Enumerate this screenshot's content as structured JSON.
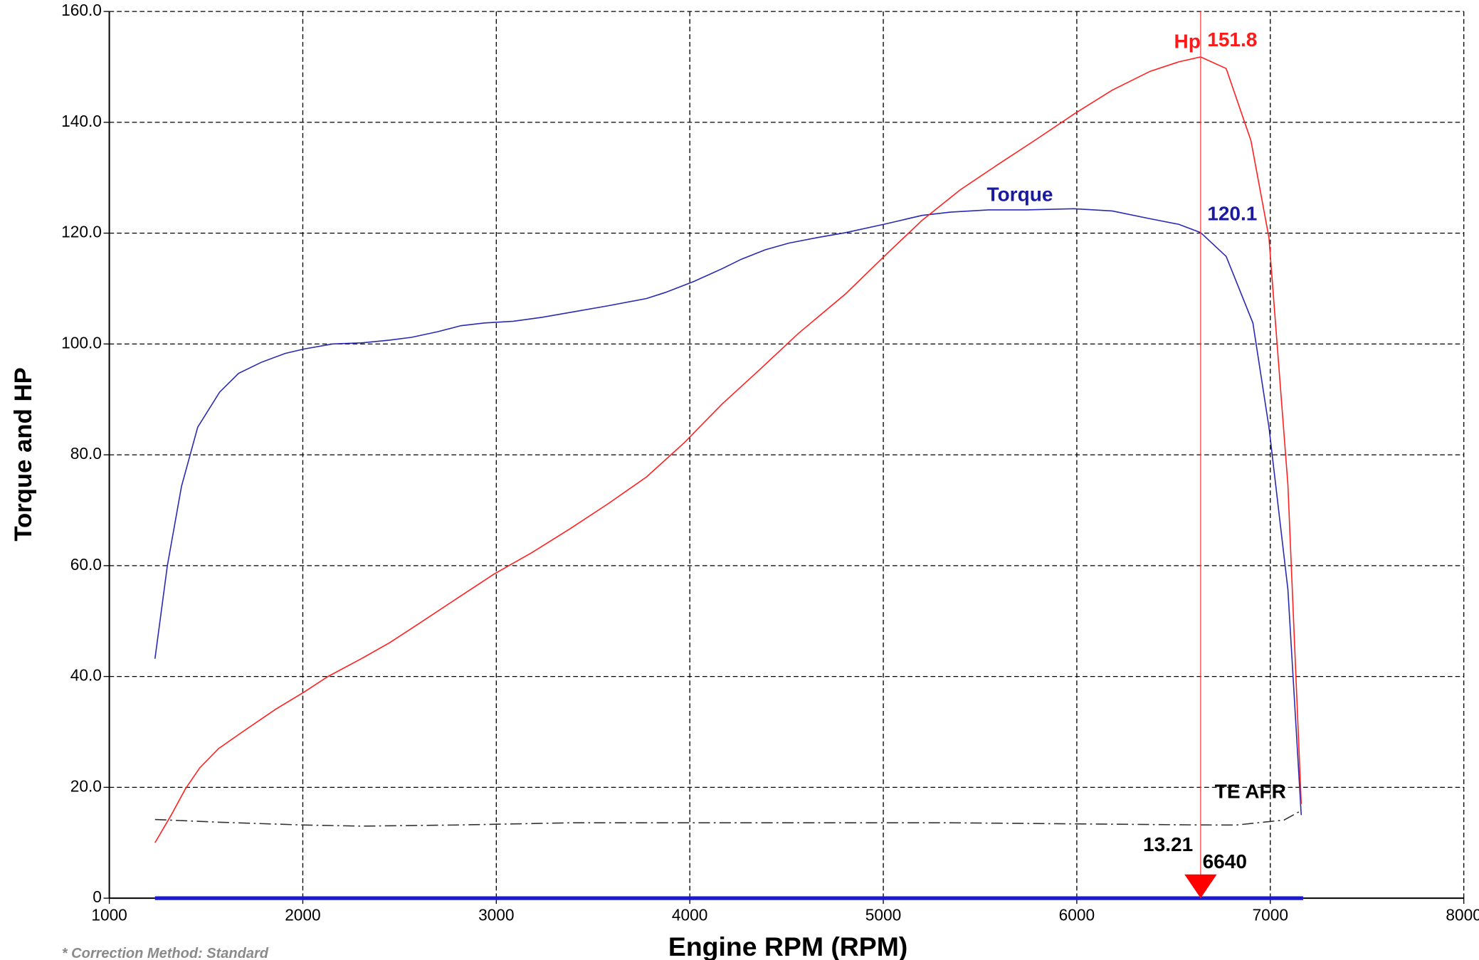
{
  "chart_data": {
    "type": "line",
    "x_label": "Engine RPM (RPM)",
    "y_label": "Torque and HP",
    "footnote": "* Correction Method: Standard",
    "xlim": [
      1000,
      8000
    ],
    "xticks": [
      1000,
      2000,
      3000,
      4000,
      5000,
      6000,
      7000,
      8000
    ],
    "ylim": [
      0,
      160
    ],
    "yticks": [
      0,
      {
        "value": 20,
        "label": "20.0"
      },
      {
        "value": 40,
        "label": "40.0"
      },
      {
        "value": 60,
        "label": "60.0"
      },
      {
        "value": 80,
        "label": "80.0"
      },
      {
        "value": 100,
        "label": "100.0"
      },
      {
        "value": 120,
        "label": "120.0"
      },
      {
        "value": 140,
        "label": "140.0"
      },
      {
        "value": 160,
        "label": "160.0"
      }
    ],
    "grid": true,
    "series": [
      {
        "name": "Torque",
        "color": "#2a2ab0",
        "dash": "solid",
        "x": [
          1236,
          1300,
          1373,
          1457,
          1570,
          1668,
          1786,
          1909,
          2007,
          2155,
          2302,
          2449,
          2562,
          2695,
          2817,
          2940,
          3088,
          3235,
          3383,
          3579,
          3776,
          3874,
          4022,
          4168,
          4267,
          4390,
          4512,
          4660,
          4807,
          5004,
          5200,
          5347,
          5544,
          5740,
          5986,
          6183,
          6379,
          6526,
          6640,
          6772,
          6910,
          6993,
          7091,
          7160
        ],
        "values": [
          43.2,
          60,
          74.3,
          85,
          91.3,
          94.7,
          96.7,
          98.3,
          99.1,
          100,
          100.2,
          100.7,
          101.2,
          102.2,
          103.3,
          103.8,
          104.1,
          104.8,
          105.7,
          106.9,
          108.2,
          109.3,
          111.3,
          113.6,
          115.3,
          117,
          118.2,
          119.2,
          120.1,
          121.6,
          123.2,
          123.8,
          124.2,
          124.2,
          124.4,
          124,
          122.6,
          121.6,
          120.1,
          115.8,
          103.8,
          85,
          55.7,
          15
        ]
      },
      {
        "name": "Hp",
        "color": "#ff2020",
        "dash": "solid",
        "x": [
          1236,
          1320,
          1393,
          1467,
          1565,
          1688,
          1860,
          2007,
          2130,
          2302,
          2449,
          2572,
          2793,
          2989,
          3186,
          3383,
          3579,
          3776,
          3972,
          4168,
          4365,
          4561,
          4807,
          5004,
          5200,
          5397,
          5593,
          5790,
          5986,
          6183,
          6379,
          6526,
          6640,
          6772,
          6900,
          6993,
          7091,
          7160
        ],
        "values": [
          10,
          15,
          19.7,
          23.5,
          27,
          30,
          34.1,
          37.2,
          40,
          43.2,
          46.1,
          48.9,
          54,
          58.5,
          62.4,
          66.7,
          71.2,
          76,
          82.2,
          89.2,
          95.5,
          101.9,
          109.1,
          115.8,
          122.3,
          127.8,
          132.4,
          136.9,
          141.5,
          145.8,
          149.2,
          150.9,
          151.8,
          149.7,
          136.7,
          119.2,
          74.6,
          17
        ]
      },
      {
        "name": "TE AFR",
        "color": "#333333",
        "dash": "dashdot",
        "x": [
          1236,
          1570,
          2007,
          2302,
          2793,
          3383,
          4365,
          5347,
          6640,
          6826,
          7071,
          7160
        ],
        "values": [
          14.2,
          13.7,
          13.2,
          13,
          13.2,
          13.6,
          13.6,
          13.6,
          13.21,
          13.2,
          14.1,
          15.8
        ]
      }
    ],
    "annotations": {
      "hp_peak": 151.8,
      "torque_peak": 120.1,
      "afr_cursor": 13.21,
      "cursor_rpm": 6640
    }
  }
}
